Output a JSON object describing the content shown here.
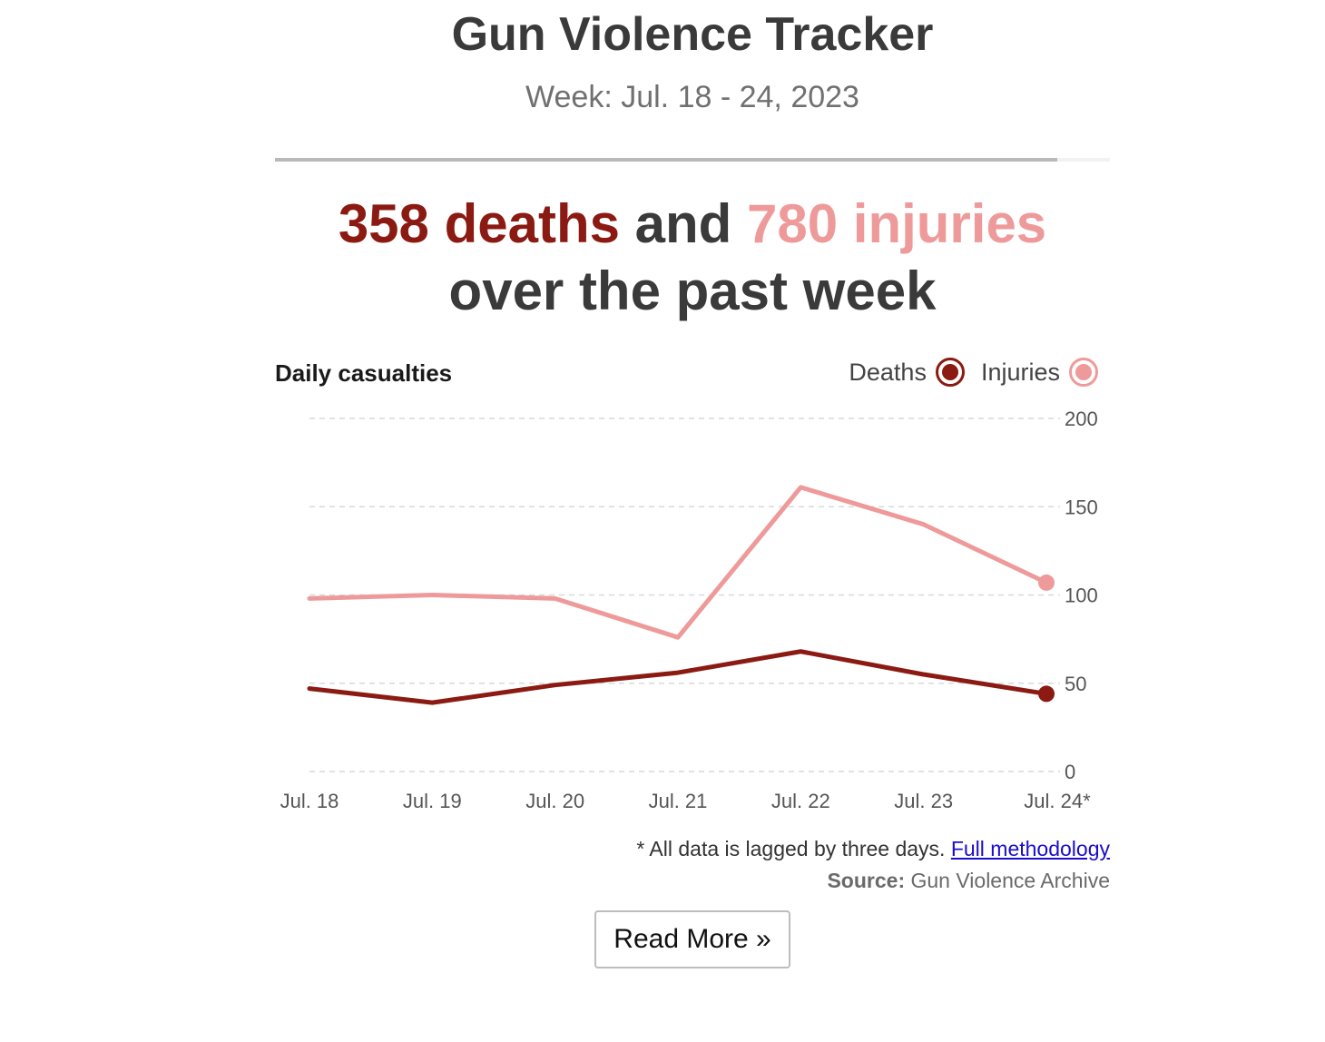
{
  "header": {
    "title": "Gun Violence Tracker",
    "subtitle": "Week: Jul. 18 - 24, 2023"
  },
  "progress": {
    "fraction": 0.937
  },
  "headline": {
    "deaths": "358 deaths",
    "and": " and ",
    "injuries": "780 injuries",
    "line2": "over the past week"
  },
  "chart_label": "Daily casualties",
  "colors": {
    "deaths": "#8b1a12",
    "injuries": "#ee9a9a",
    "grid": "#d9d9d9",
    "tick": "#555555"
  },
  "chart_data": {
    "type": "line",
    "title": "Daily casualties",
    "categories": [
      "Jul. 18",
      "Jul. 19",
      "Jul. 20",
      "Jul. 21",
      "Jul. 22",
      "Jul. 23",
      "Jul. 24*"
    ],
    "series": [
      {
        "name": "Deaths",
        "values": [
          47,
          39,
          49,
          56,
          68,
          55,
          44
        ]
      },
      {
        "name": "Injuries",
        "values": [
          98,
          100,
          98,
          76,
          161,
          140,
          107
        ]
      }
    ],
    "y_ticks": [
      "0",
      "50",
      "100",
      "150",
      "200"
    ],
    "ylim": [
      0,
      200
    ],
    "grid": true,
    "legend": "top-right",
    "xlabel": "",
    "ylabel": ""
  },
  "footnote": {
    "text": "* All data is lagged by three days. ",
    "link": "Full methodology"
  },
  "source": {
    "label": "Source:",
    "text": " Gun Violence Archive"
  },
  "button": {
    "label": "Read More »"
  }
}
